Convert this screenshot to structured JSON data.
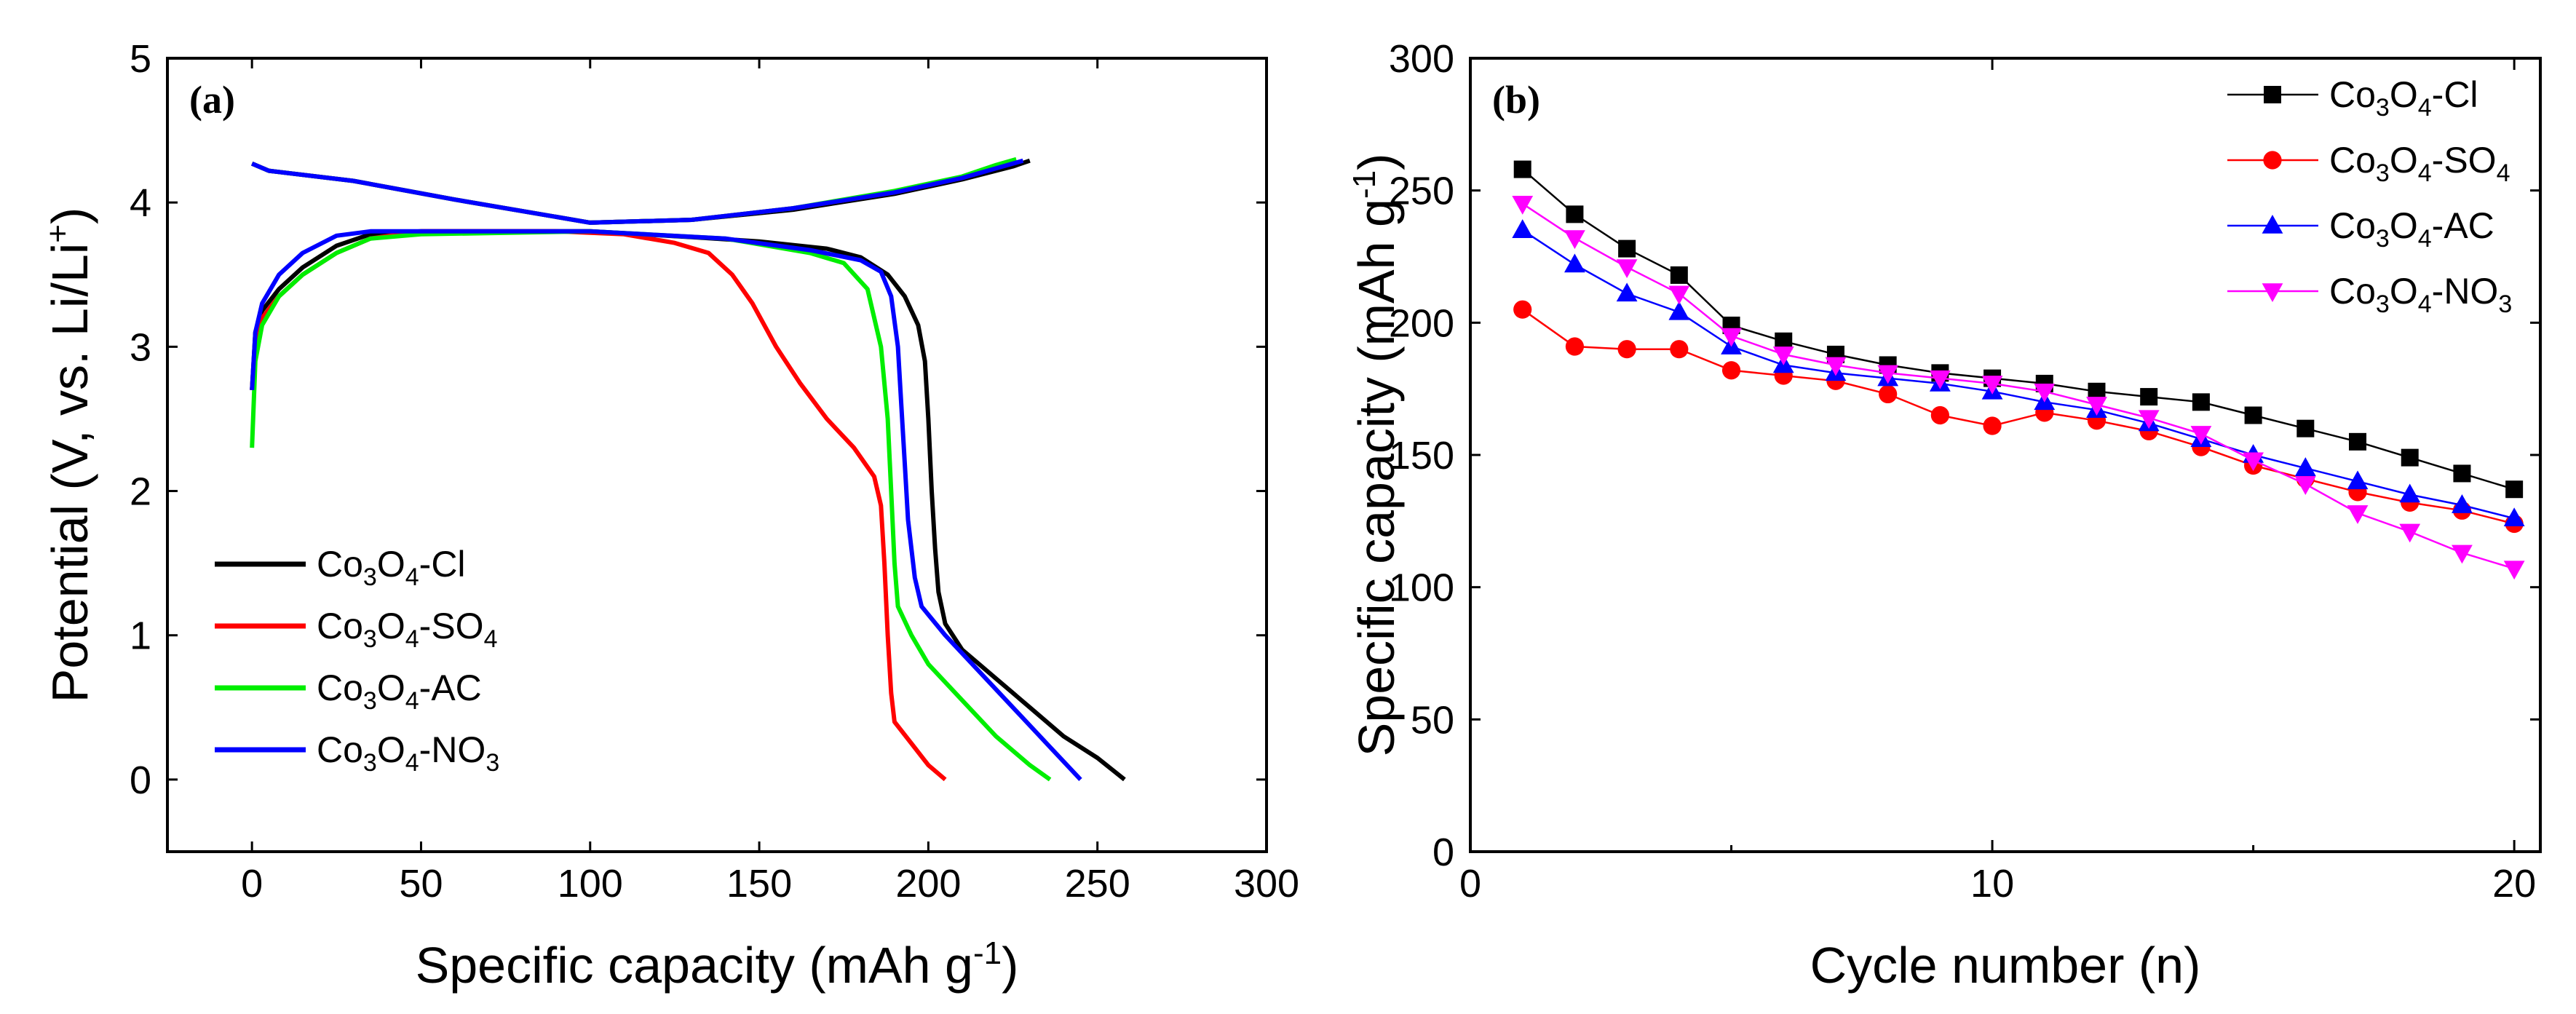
{
  "chart_data": [
    {
      "type": "line",
      "panel_label": "(a)",
      "xlabel": "Specific capacity (mAh g",
      "xlabel_sup": "-1",
      "xlabel_tail": ")",
      "ylabel": "Potential (V, vs. Li/Li",
      "ylabel_sup": "+",
      "ylabel_tail": ")",
      "xlim": [
        -25,
        300
      ],
      "ylim": [
        -0.5,
        5
      ],
      "xticks": [
        "0",
        "50",
        "100",
        "150",
        "200",
        "250",
        "300"
      ],
      "yticks": [
        "0",
        "1",
        "2",
        "3",
        "4",
        "5"
      ],
      "legend_position": "bottom-left",
      "series": [
        {
          "name": "Co3O4-Cl",
          "parts": [
            [
              "Co",
              ""
            ],
            [
              "3",
              "sub"
            ],
            [
              "O",
              ""
            ],
            [
              "4",
              "sub"
            ],
            [
              "-Cl",
              ""
            ]
          ],
          "color": "#000000",
          "discharge": [
            [
              0,
              2.7
            ],
            [
              1,
              3.1
            ],
            [
              3,
              3.25
            ],
            [
              8,
              3.4
            ],
            [
              15,
              3.55
            ],
            [
              25,
              3.7
            ],
            [
              35,
              3.78
            ],
            [
              50,
              3.8
            ],
            [
              100,
              3.8
            ],
            [
              130,
              3.76
            ],
            [
              150,
              3.73
            ],
            [
              170,
              3.68
            ],
            [
              180,
              3.62
            ],
            [
              188,
              3.5
            ],
            [
              193,
              3.35
            ],
            [
              197,
              3.15
            ],
            [
              199,
              2.9
            ],
            [
              200,
              2.5
            ],
            [
              201,
              2.0
            ],
            [
              202,
              1.6
            ],
            [
              203,
              1.3
            ],
            [
              205,
              1.08
            ],
            [
              210,
              0.9
            ],
            [
              220,
              0.7
            ],
            [
              230,
              0.5
            ],
            [
              240,
              0.3
            ],
            [
              250,
              0.15
            ],
            [
              258,
              0.0
            ]
          ],
          "charge": [
            [
              0,
              4.27
            ],
            [
              5,
              4.22
            ],
            [
              30,
              4.15
            ],
            [
              60,
              4.02
            ],
            [
              100,
              3.86
            ],
            [
              130,
              3.88
            ],
            [
              160,
              3.95
            ],
            [
              190,
              4.06
            ],
            [
              210,
              4.16
            ],
            [
              225,
              4.25
            ],
            [
              230,
              4.29
            ]
          ]
        },
        {
          "name": "Co3O4-SO4",
          "parts": [
            [
              "Co",
              ""
            ],
            [
              "3",
              "sub"
            ],
            [
              "O",
              ""
            ],
            [
              "4",
              "sub"
            ],
            [
              "-SO",
              ""
            ],
            [
              "4",
              "sub"
            ]
          ],
          "color": "#ff0000",
          "discharge": [
            [
              0,
              2.7
            ],
            [
              1,
              3.05
            ],
            [
              3,
              3.2
            ],
            [
              8,
              3.35
            ],
            [
              15,
              3.5
            ],
            [
              25,
              3.65
            ],
            [
              35,
              3.75
            ],
            [
              50,
              3.8
            ],
            [
              90,
              3.8
            ],
            [
              110,
              3.78
            ],
            [
              125,
              3.72
            ],
            [
              135,
              3.65
            ],
            [
              142,
              3.5
            ],
            [
              148,
              3.3
            ],
            [
              155,
              3.0
            ],
            [
              162,
              2.75
            ],
            [
              170,
              2.5
            ],
            [
              178,
              2.3
            ],
            [
              184,
              2.1
            ],
            [
              186,
              1.9
            ],
            [
              187,
              1.5
            ],
            [
              188,
              1.0
            ],
            [
              189,
              0.6
            ],
            [
              190,
              0.4
            ],
            [
              195,
              0.25
            ],
            [
              200,
              0.1
            ],
            [
              205,
              0.0
            ]
          ],
          "charge": [
            [
              0,
              4.27
            ],
            [
              5,
              4.22
            ],
            [
              30,
              4.15
            ],
            [
              60,
              4.02
            ],
            [
              100,
              3.86
            ],
            [
              130,
              3.88
            ],
            [
              160,
              3.96
            ],
            [
              190,
              4.07
            ],
            [
              210,
              4.17
            ],
            [
              220,
              4.24
            ],
            [
              225,
              4.28
            ]
          ]
        },
        {
          "name": "Co3O4-AC",
          "parts": [
            [
              "Co",
              ""
            ],
            [
              "3",
              "sub"
            ],
            [
              "O",
              ""
            ],
            [
              "4",
              "sub"
            ],
            [
              "-AC",
              ""
            ]
          ],
          "color": "#00ee00",
          "discharge": [
            [
              0,
              2.3
            ],
            [
              1,
              2.9
            ],
            [
              3,
              3.15
            ],
            [
              8,
              3.35
            ],
            [
              15,
              3.5
            ],
            [
              25,
              3.65
            ],
            [
              35,
              3.75
            ],
            [
              50,
              3.78
            ],
            [
              100,
              3.8
            ],
            [
              140,
              3.75
            ],
            [
              165,
              3.65
            ],
            [
              175,
              3.58
            ],
            [
              182,
              3.4
            ],
            [
              186,
              3.0
            ],
            [
              188,
              2.5
            ],
            [
              189,
              2.0
            ],
            [
              190,
              1.5
            ],
            [
              191,
              1.2
            ],
            [
              195,
              1.0
            ],
            [
              200,
              0.8
            ],
            [
              210,
              0.55
            ],
            [
              220,
              0.3
            ],
            [
              230,
              0.1
            ],
            [
              236,
              0.0
            ]
          ],
          "charge": [
            [
              0,
              4.27
            ],
            [
              5,
              4.22
            ],
            [
              30,
              4.15
            ],
            [
              60,
              4.02
            ],
            [
              100,
              3.86
            ],
            [
              130,
              3.88
            ],
            [
              160,
              3.96
            ],
            [
              190,
              4.08
            ],
            [
              210,
              4.18
            ],
            [
              220,
              4.26
            ],
            [
              226,
              4.3
            ]
          ]
        },
        {
          "name": "Co3O4-NO3",
          "parts": [
            [
              "Co",
              ""
            ],
            [
              "3",
              "sub"
            ],
            [
              "O",
              ""
            ],
            [
              "4",
              "sub"
            ],
            [
              "-NO",
              ""
            ],
            [
              "3",
              "sub"
            ]
          ],
          "color": "#0000ff",
          "discharge": [
            [
              0,
              2.7
            ],
            [
              1,
              3.1
            ],
            [
              3,
              3.3
            ],
            [
              8,
              3.5
            ],
            [
              15,
              3.65
            ],
            [
              25,
              3.77
            ],
            [
              35,
              3.8
            ],
            [
              50,
              3.8
            ],
            [
              100,
              3.8
            ],
            [
              140,
              3.75
            ],
            [
              165,
              3.67
            ],
            [
              180,
              3.6
            ],
            [
              186,
              3.52
            ],
            [
              189,
              3.35
            ],
            [
              191,
              3.0
            ],
            [
              192,
              2.6
            ],
            [
              193,
              2.2
            ],
            [
              194,
              1.8
            ],
            [
              196,
              1.4
            ],
            [
              198,
              1.2
            ],
            [
              205,
              1.0
            ],
            [
              215,
              0.75
            ],
            [
              225,
              0.5
            ],
            [
              235,
              0.25
            ],
            [
              245,
              0.0
            ]
          ],
          "charge": [
            [
              0,
              4.27
            ],
            [
              5,
              4.22
            ],
            [
              30,
              4.15
            ],
            [
              60,
              4.02
            ],
            [
              100,
              3.86
            ],
            [
              130,
              3.88
            ],
            [
              160,
              3.96
            ],
            [
              190,
              4.07
            ],
            [
              210,
              4.17
            ],
            [
              222,
              4.25
            ],
            [
              228,
              4.29
            ]
          ]
        }
      ]
    },
    {
      "type": "line",
      "panel_label": "(b)",
      "xlabel": "Cycle number (n)",
      "ylabel": "Specific capacity (mAh g",
      "ylabel_sup": "-1",
      "ylabel_tail": ")",
      "xlim": [
        0,
        20.5
      ],
      "ylim": [
        0,
        300
      ],
      "xticks": [
        "0",
        "10",
        "20"
      ],
      "xtick_values": [
        0,
        10,
        20
      ],
      "yticks": [
        "0",
        "50",
        "100",
        "150",
        "200",
        "250",
        "300"
      ],
      "legend_position": "top-right",
      "x": [
        1,
        2,
        3,
        4,
        5,
        6,
        7,
        8,
        9,
        10,
        11,
        12,
        13,
        14,
        15,
        16,
        17,
        18,
        19,
        20
      ],
      "series": [
        {
          "name": "Co3O4-Cl",
          "parts": [
            [
              "Co",
              ""
            ],
            [
              "3",
              "sub"
            ],
            [
              "O",
              ""
            ],
            [
              "4",
              "sub"
            ],
            [
              "-Cl",
              ""
            ]
          ],
          "color": "#000000",
          "marker": "square",
          "values": [
            258,
            241,
            228,
            218,
            199,
            193,
            188,
            184,
            181,
            179,
            177,
            174,
            172,
            170,
            165,
            160,
            155,
            149,
            143,
            137
          ]
        },
        {
          "name": "Co3O4-SO4",
          "parts": [
            [
              "Co",
              ""
            ],
            [
              "3",
              "sub"
            ],
            [
              "O",
              ""
            ],
            [
              "4",
              "sub"
            ],
            [
              "-SO",
              ""
            ],
            [
              "4",
              "sub"
            ]
          ],
          "color": "#ff0000",
          "marker": "circle",
          "values": [
            205,
            191,
            190,
            190,
            182,
            180,
            178,
            173,
            165,
            161,
            166,
            163,
            159,
            153,
            146,
            141,
            136,
            132,
            129,
            124
          ]
        },
        {
          "name": "Co3O4-AC",
          "parts": [
            [
              "Co",
              ""
            ],
            [
              "3",
              "sub"
            ],
            [
              "O",
              ""
            ],
            [
              "4",
              "sub"
            ],
            [
              "-AC",
              ""
            ]
          ],
          "color": "#0000ff",
          "marker": "triangle-up",
          "values": [
            235,
            222,
            211,
            204,
            191,
            184,
            181,
            179,
            177,
            174,
            170,
            167,
            162,
            156,
            150,
            145,
            140,
            135,
            131,
            126
          ]
        },
        {
          "name": "Co3O4-NO3",
          "parts": [
            [
              "Co",
              ""
            ],
            [
              "3",
              "sub"
            ],
            [
              "O",
              ""
            ],
            [
              "4",
              "sub"
            ],
            [
              "-NO",
              ""
            ],
            [
              "3",
              "sub"
            ]
          ],
          "color": "#ff00ff",
          "marker": "triangle-down",
          "values": [
            245,
            232,
            221,
            211,
            195,
            188,
            184,
            181,
            179,
            177,
            174,
            169,
            164,
            158,
            148,
            139,
            128,
            121,
            113,
            107
          ]
        }
      ]
    }
  ]
}
